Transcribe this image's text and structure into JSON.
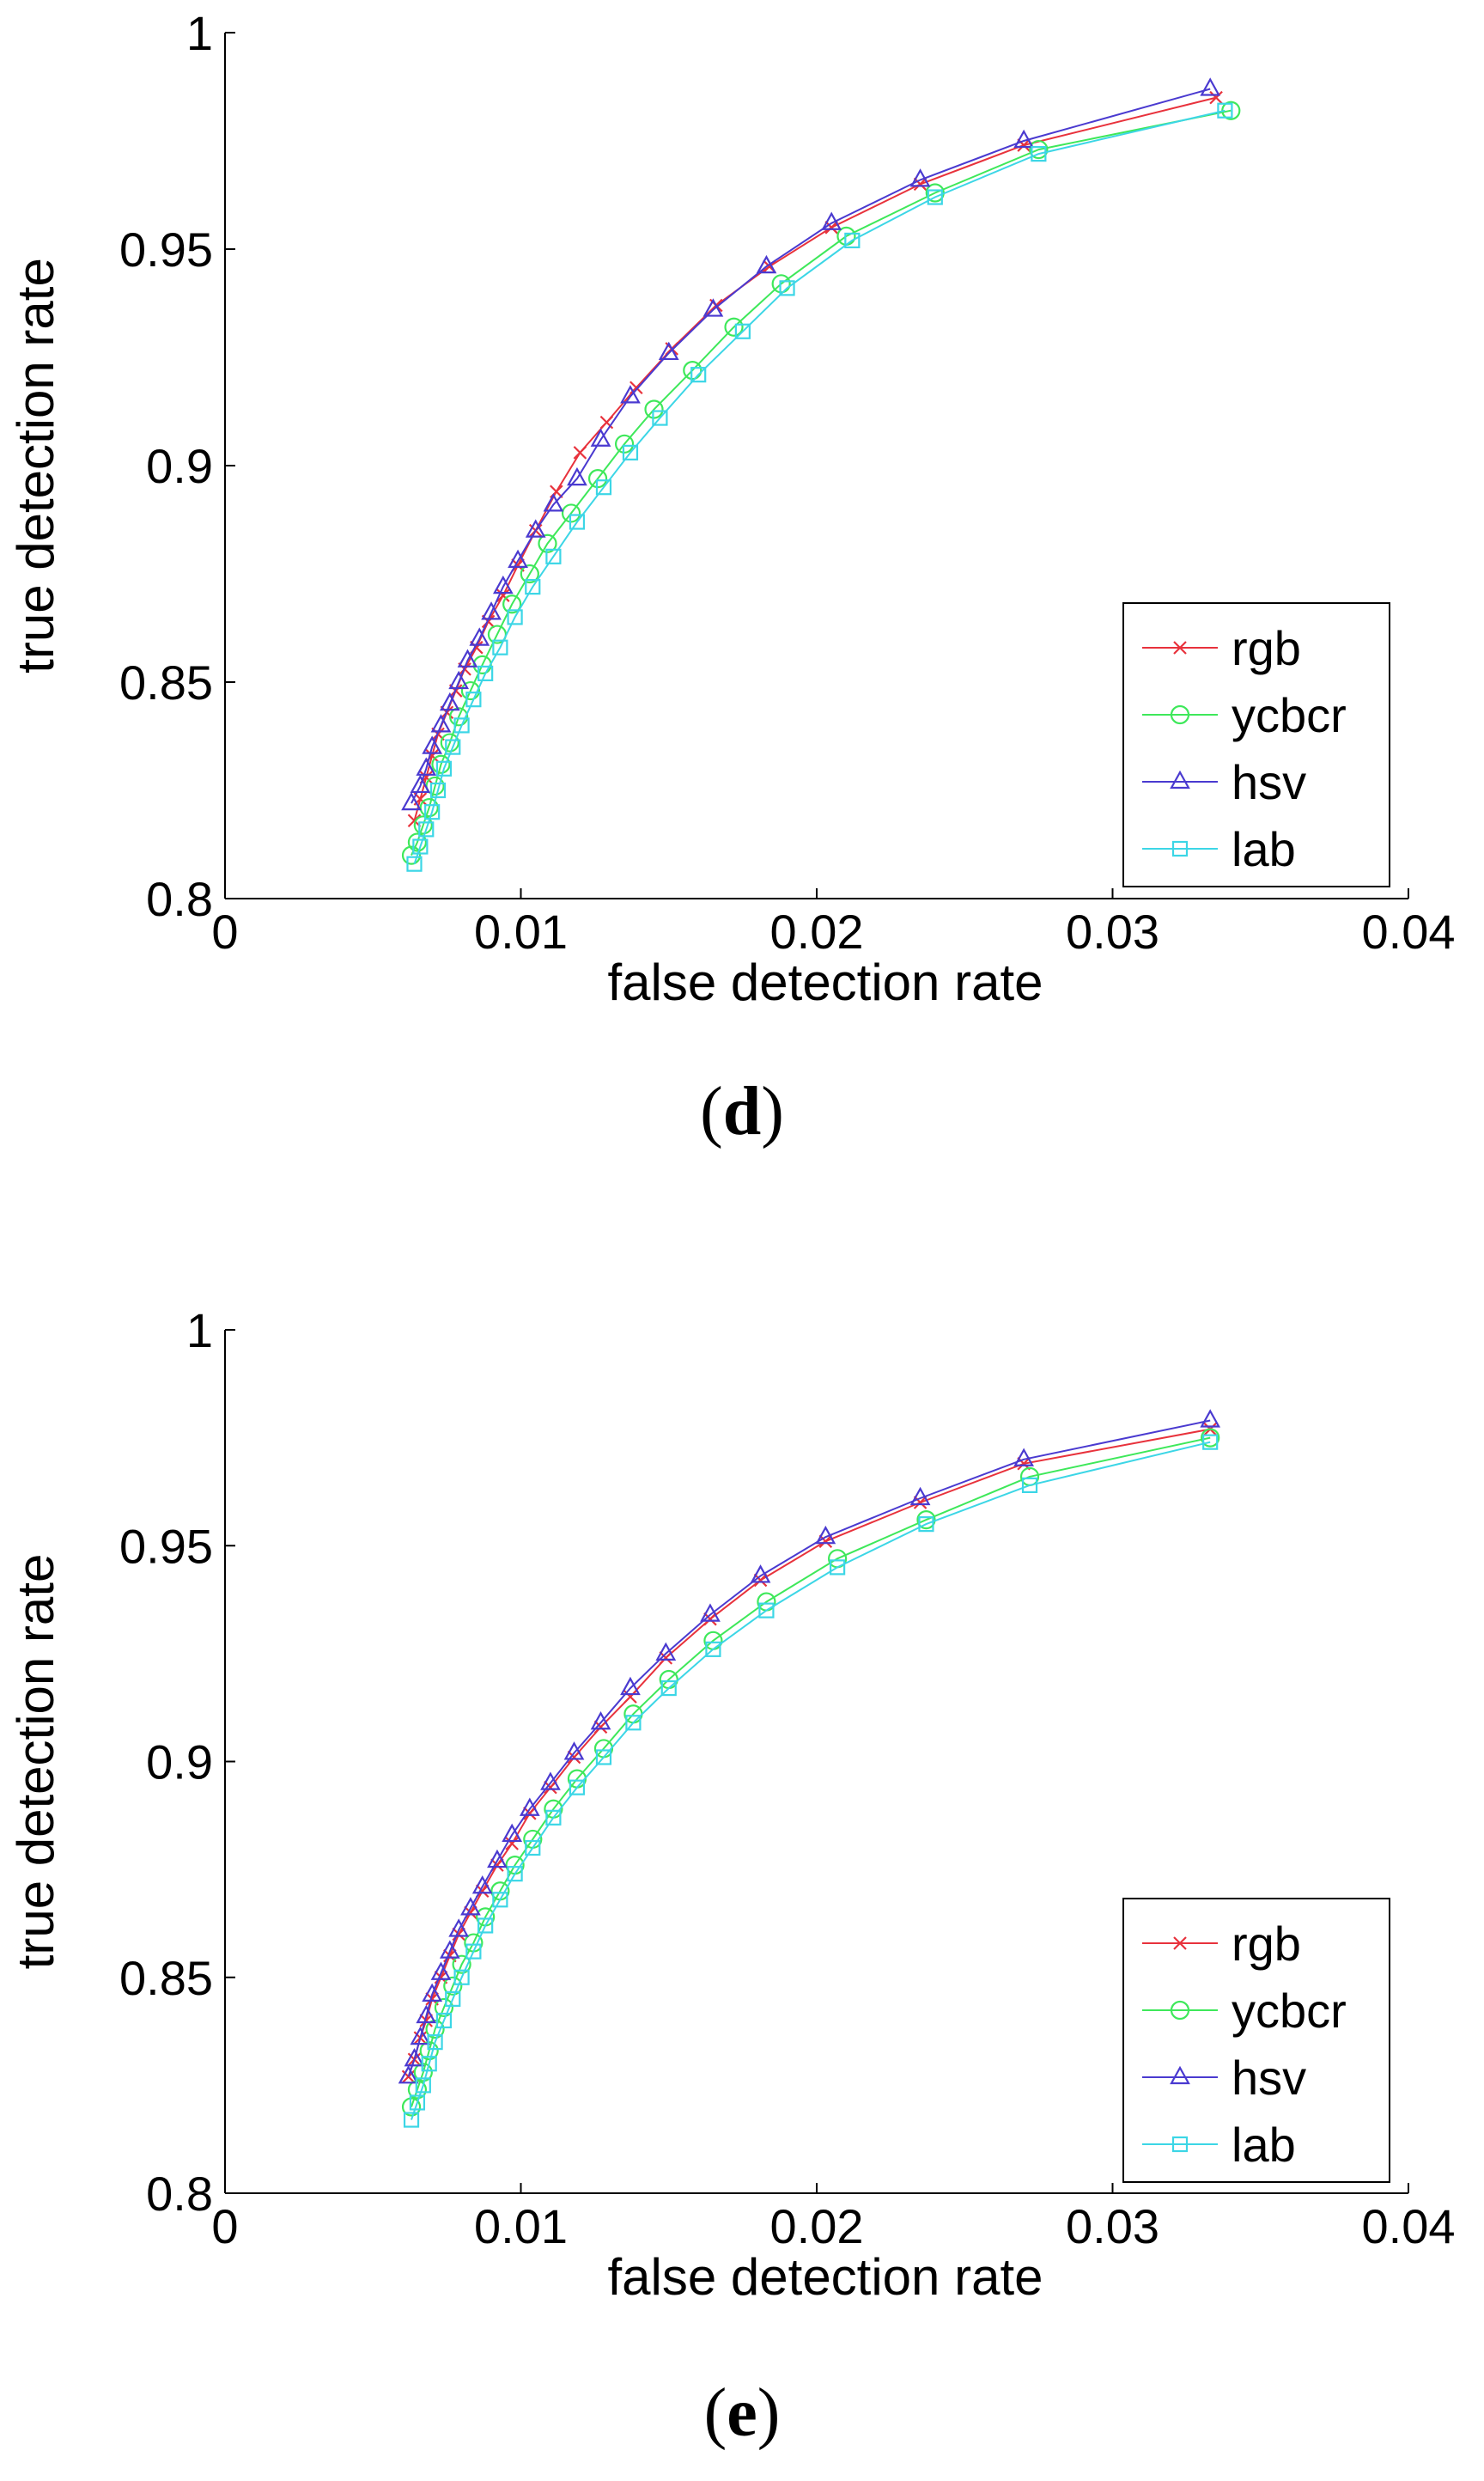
{
  "chart_data": [
    {
      "type": "line",
      "panel_label": "d",
      "xlabel": "false detection rate",
      "ylabel": "true detection rate",
      "xlim": [
        0,
        0.04
      ],
      "ylim": [
        0.8,
        1
      ],
      "xticks": [
        0,
        0.01,
        0.02,
        0.03,
        0.04
      ],
      "xtick_labels": [
        "0",
        "0.01",
        "0.02",
        "0.03",
        "0.04"
      ],
      "yticks": [
        0.8,
        0.85,
        0.9,
        0.95,
        1
      ],
      "ytick_labels": [
        "0.8",
        "0.85",
        "0.9",
        "0.95",
        "1"
      ],
      "legend_position": "bottom-right",
      "series": [
        {
          "name": "rgb",
          "marker": "x",
          "color": "#e8323c",
          "x": [
            0.0064,
            0.0066,
            0.0068,
            0.007,
            0.0072,
            0.0075,
            0.0078,
            0.0081,
            0.0085,
            0.0089,
            0.0094,
            0.0099,
            0.0105,
            0.0112,
            0.012,
            0.0129,
            0.0139,
            0.0151,
            0.0166,
            0.0184,
            0.0205,
            0.0235,
            0.027,
            0.0335
          ],
          "y": [
            0.818,
            0.823,
            0.828,
            0.833,
            0.838,
            0.843,
            0.848,
            0.853,
            0.858,
            0.864,
            0.87,
            0.877,
            0.885,
            0.894,
            0.903,
            0.91,
            0.918,
            0.927,
            0.937,
            0.946,
            0.955,
            0.965,
            0.974,
            0.985
          ]
        },
        {
          "name": "ycbcr",
          "marker": "o",
          "color": "#3ee85a",
          "x": [
            0.0063,
            0.0065,
            0.0067,
            0.0069,
            0.0071,
            0.0073,
            0.0076,
            0.0079,
            0.0083,
            0.0087,
            0.0092,
            0.0097,
            0.0103,
            0.0109,
            0.0117,
            0.0126,
            0.0135,
            0.0145,
            0.0158,
            0.0172,
            0.0188,
            0.021,
            0.024,
            0.0275,
            0.034
          ],
          "y": [
            0.81,
            0.813,
            0.817,
            0.821,
            0.826,
            0.831,
            0.836,
            0.842,
            0.848,
            0.854,
            0.861,
            0.868,
            0.875,
            0.882,
            0.889,
            0.897,
            0.905,
            0.913,
            0.922,
            0.932,
            0.942,
            0.953,
            0.963,
            0.973,
            0.982
          ]
        },
        {
          "name": "hsv",
          "marker": "triangle",
          "color": "#4a3ad0",
          "x": [
            0.0063,
            0.0066,
            0.0068,
            0.007,
            0.0073,
            0.0076,
            0.0079,
            0.0082,
            0.0086,
            0.009,
            0.0094,
            0.0099,
            0.0105,
            0.0111,
            0.0119,
            0.0127,
            0.0137,
            0.015,
            0.0165,
            0.0183,
            0.0205,
            0.0235,
            0.027,
            0.0333
          ],
          "y": [
            0.822,
            0.826,
            0.83,
            0.835,
            0.84,
            0.845,
            0.85,
            0.855,
            0.86,
            0.866,
            0.872,
            0.878,
            0.885,
            0.891,
            0.897,
            0.906,
            0.916,
            0.926,
            0.936,
            0.946,
            0.956,
            0.966,
            0.975,
            0.987
          ]
        },
        {
          "name": "lab",
          "marker": "square",
          "color": "#3cd6e6",
          "x": [
            0.0064,
            0.0066,
            0.0068,
            0.007,
            0.0072,
            0.0074,
            0.0077,
            0.008,
            0.0084,
            0.0088,
            0.0093,
            0.0098,
            0.0104,
            0.0111,
            0.0119,
            0.0128,
            0.0137,
            0.0147,
            0.016,
            0.0175,
            0.019,
            0.0212,
            0.024,
            0.0275,
            0.0338
          ],
          "y": [
            0.808,
            0.812,
            0.816,
            0.82,
            0.825,
            0.83,
            0.835,
            0.84,
            0.846,
            0.852,
            0.858,
            0.865,
            0.872,
            0.879,
            0.887,
            0.895,
            0.903,
            0.911,
            0.921,
            0.931,
            0.941,
            0.952,
            0.962,
            0.972,
            0.982
          ]
        }
      ]
    },
    {
      "type": "line",
      "panel_label": "e",
      "xlabel": "false detection rate",
      "ylabel": "true detection rate",
      "xlim": [
        0,
        0.04
      ],
      "ylim": [
        0.8,
        1
      ],
      "xticks": [
        0,
        0.01,
        0.02,
        0.03,
        0.04
      ],
      "xtick_labels": [
        "0",
        "0.01",
        "0.02",
        "0.03",
        "0.04"
      ],
      "yticks": [
        0.8,
        0.85,
        0.9,
        0.95,
        1
      ],
      "ytick_labels": [
        "0.8",
        "0.85",
        "0.9",
        "0.95",
        "1"
      ],
      "legend_position": "bottom-right",
      "series": [
        {
          "name": "rgb",
          "marker": "x",
          "color": "#e8323c",
          "x": [
            0.0062,
            0.0064,
            0.0066,
            0.0068,
            0.007,
            0.0073,
            0.0076,
            0.0079,
            0.0083,
            0.0087,
            0.0092,
            0.0097,
            0.0103,
            0.011,
            0.0118,
            0.0127,
            0.0137,
            0.0149,
            0.0164,
            0.0181,
            0.0203,
            0.0235,
            0.027,
            0.0333
          ],
          "y": [
            0.827,
            0.831,
            0.836,
            0.84,
            0.845,
            0.85,
            0.855,
            0.86,
            0.865,
            0.87,
            0.876,
            0.881,
            0.888,
            0.894,
            0.901,
            0.908,
            0.915,
            0.924,
            0.933,
            0.942,
            0.951,
            0.96,
            0.969,
            0.977
          ]
        },
        {
          "name": "ycbcr",
          "marker": "o",
          "color": "#3ee85a",
          "x": [
            0.0063,
            0.0065,
            0.0067,
            0.0069,
            0.0071,
            0.0074,
            0.0077,
            0.008,
            0.0084,
            0.0088,
            0.0093,
            0.0098,
            0.0104,
            0.0111,
            0.0119,
            0.0128,
            0.0138,
            0.015,
            0.0165,
            0.0183,
            0.0207,
            0.0237,
            0.0272,
            0.0333
          ],
          "y": [
            0.82,
            0.824,
            0.828,
            0.833,
            0.838,
            0.843,
            0.848,
            0.853,
            0.858,
            0.864,
            0.87,
            0.876,
            0.882,
            0.889,
            0.896,
            0.903,
            0.911,
            0.919,
            0.928,
            0.937,
            0.947,
            0.956,
            0.966,
            0.975
          ]
        },
        {
          "name": "hsv",
          "marker": "triangle",
          "color": "#4a3ad0",
          "x": [
            0.0062,
            0.0064,
            0.0066,
            0.0068,
            0.007,
            0.0073,
            0.0076,
            0.0079,
            0.0083,
            0.0087,
            0.0092,
            0.0097,
            0.0103,
            0.011,
            0.0118,
            0.0127,
            0.0137,
            0.0149,
            0.0164,
            0.0181,
            0.0203,
            0.0235,
            0.027,
            0.0333
          ],
          "y": [
            0.827,
            0.831,
            0.836,
            0.841,
            0.846,
            0.851,
            0.856,
            0.861,
            0.866,
            0.871,
            0.877,
            0.883,
            0.889,
            0.895,
            0.902,
            0.909,
            0.917,
            0.925,
            0.934,
            0.943,
            0.952,
            0.961,
            0.97,
            0.979
          ]
        },
        {
          "name": "lab",
          "marker": "square",
          "color": "#3cd6e6",
          "x": [
            0.0063,
            0.0065,
            0.0067,
            0.0069,
            0.0071,
            0.0074,
            0.0077,
            0.008,
            0.0084,
            0.0088,
            0.0093,
            0.0098,
            0.0104,
            0.0111,
            0.0119,
            0.0128,
            0.0138,
            0.015,
            0.0165,
            0.0183,
            0.0207,
            0.0237,
            0.0272,
            0.0333
          ],
          "y": [
            0.817,
            0.821,
            0.825,
            0.83,
            0.835,
            0.84,
            0.845,
            0.85,
            0.856,
            0.862,
            0.868,
            0.874,
            0.88,
            0.887,
            0.894,
            0.901,
            0.909,
            0.917,
            0.926,
            0.935,
            0.945,
            0.955,
            0.964,
            0.974
          ]
        }
      ]
    }
  ]
}
